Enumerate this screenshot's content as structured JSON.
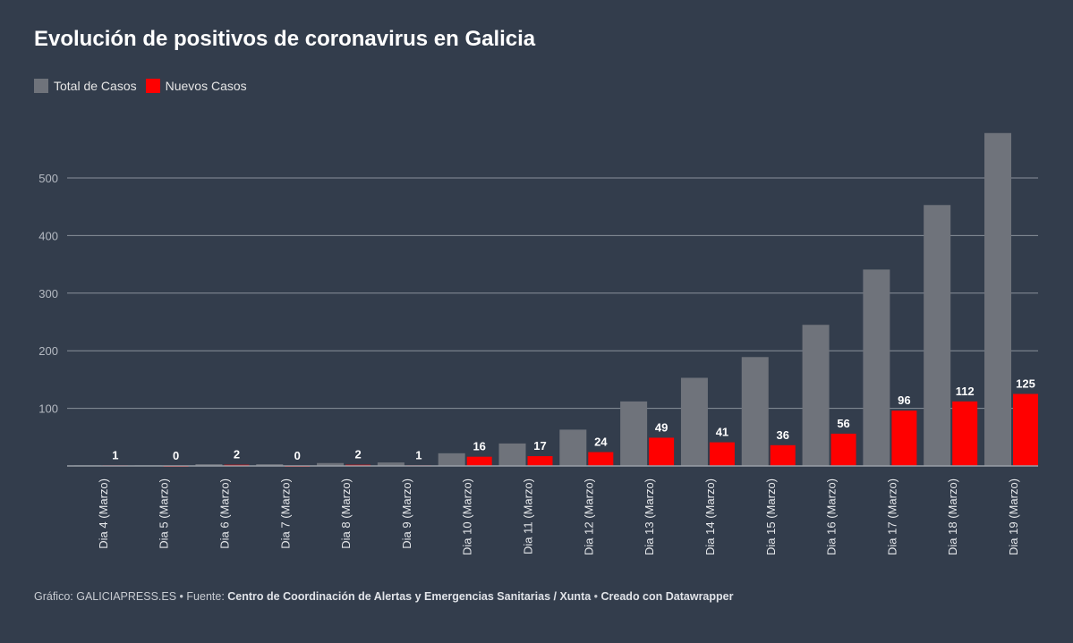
{
  "chart_data": {
    "type": "bar",
    "title": "Evolución de positivos de coronavirus en Galicia",
    "categories": [
      "Dia 4 (Marzo)",
      "Dia 5 (Marzo)",
      "Dia 6 (Marzo)",
      "Dia 7 (Marzo)",
      "Dia 8 (Marzo)",
      "Dia 9 (Marzo)",
      "Dia 10 (Marzo)",
      "Dia 11 (Marzo)",
      "Dia 12 (Marzo)",
      "Dia 13 (Marzo)",
      "Dia 14 (Marzo)",
      "Dia 15 (Marzo)",
      "Dia 16 (Marzo)",
      "Dia 17 (Marzo)",
      "Dia 18 (Marzo)",
      "Dia 19 (Marzo)"
    ],
    "series": [
      {
        "name": "Total de Casos",
        "color": "#6f737b",
        "values": [
          1,
          1,
          3,
          3,
          5,
          6,
          22,
          39,
          63,
          112,
          153,
          189,
          245,
          341,
          453,
          578
        ]
      },
      {
        "name": "Nuevos Casos",
        "color": "#ff0000",
        "values": [
          1,
          0,
          2,
          0,
          2,
          1,
          16,
          17,
          24,
          49,
          41,
          36,
          56,
          96,
          112,
          125
        ],
        "data_labels": true
      }
    ],
    "yticks": [
      100,
      200,
      300,
      400,
      500
    ],
    "ylim": [
      0,
      600
    ],
    "grid": true,
    "legend_position": "top-left"
  },
  "footer": {
    "prefix": "Gráfico: GALICIAPRESS.ES • Fuente: ",
    "source": "Centro de Coordinación de Alertas y Emergencias Sanitarias / Xunta",
    "sep": " • ",
    "credit": "Creado con Datawrapper"
  }
}
